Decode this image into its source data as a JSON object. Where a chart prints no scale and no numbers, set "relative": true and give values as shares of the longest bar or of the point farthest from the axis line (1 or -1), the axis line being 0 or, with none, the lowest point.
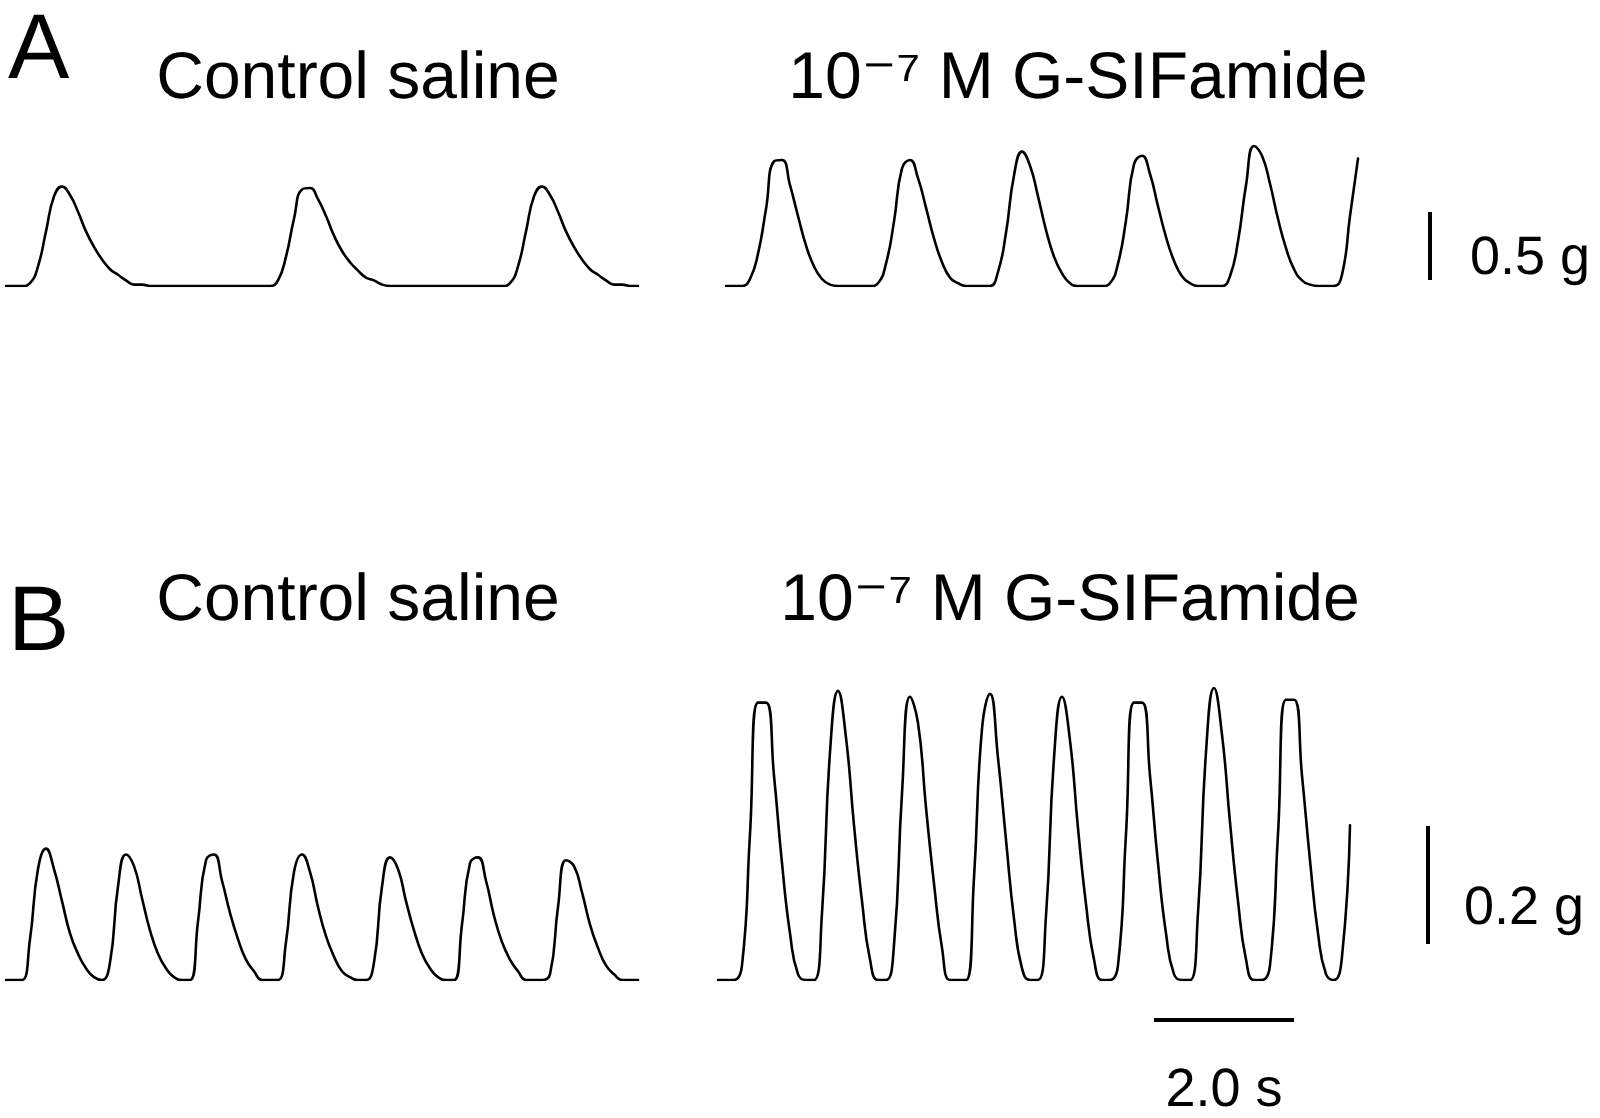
{
  "chart_data": [
    {
      "type": "line",
      "title": "A",
      "relative": true,
      "categories": [
        null,
        null,
        null,
        null,
        null,
        null,
        null,
        null,
        null,
        null,
        null,
        null,
        null,
        null,
        null,
        null,
        null,
        null,
        null,
        null,
        null,
        null,
        null,
        null,
        null,
        null,
        null,
        null,
        null,
        null,
        null,
        null,
        null,
        null,
        null,
        null,
        null,
        null,
        null,
        null,
        null,
        null,
        null,
        null,
        null,
        null,
        null,
        null,
        null,
        null,
        null,
        null,
        null,
        null,
        null,
        null,
        null,
        null,
        null,
        null,
        null,
        null,
        null,
        null,
        null,
        null,
        null,
        null,
        null,
        null,
        null,
        null,
        null,
        null,
        null,
        null,
        null,
        null,
        null,
        null,
        null,
        null,
        null,
        null,
        null,
        null,
        null,
        null,
        null,
        null,
        null,
        null,
        null,
        null,
        null,
        null,
        null,
        null,
        null,
        null,
        null,
        null,
        null,
        null,
        null,
        null,
        null,
        null,
        null,
        null,
        null,
        null,
        null,
        null,
        null,
        null,
        null,
        null,
        null,
        null,
        null,
        null,
        null,
        null,
        null,
        null,
        null,
        null,
        null,
        null,
        null,
        null,
        null,
        null,
        null,
        null,
        null,
        null,
        null,
        null,
        null,
        null,
        null,
        null,
        null,
        null,
        null,
        null,
        null,
        null,
        null,
        null,
        null,
        null,
        null,
        null,
        null,
        null,
        null,
        null,
        null,
        null,
        null,
        null,
        null,
        null,
        null,
        null,
        null,
        null
      ],
      "series": [
        {
          "name": "Control saline",
          "color": "#000000",
          "values": [
            0,
            0,
            0,
            0.02,
            0.14,
            0.39,
            0.64,
            0.71,
            0.65,
            0.53,
            0.39,
            0.28,
            0.19,
            0.12,
            0.08,
            0.04,
            0.01,
            0.01,
            0,
            0,
            0,
            0,
            0,
            0,
            0,
            0,
            0,
            0,
            0,
            0,
            0,
            0,
            0,
            0,
            0.04,
            0.21,
            0.48,
            0.69,
            0.7,
            0.62,
            0.5,
            0.36,
            0.25,
            0.17,
            0.11,
            0.06,
            0.04,
            0.01,
            0,
            0,
            0,
            0,
            0,
            0,
            0,
            0,
            0,
            0,
            0,
            0,
            0,
            0,
            0,
            0.02,
            0.14,
            0.39,
            0.64,
            0.71,
            0.65,
            0.53,
            0.39,
            0.28,
            0.19,
            0.12,
            0.08,
            0.04,
            0.01,
            0.01,
            0,
            0,
            null,
            null,
            null,
            null,
            null,
            null,
            null,
            null,
            null,
            null,
            null,
            null,
            null,
            null,
            null,
            null,
            null,
            null,
            null,
            null,
            null,
            null,
            null,
            null,
            null,
            null,
            null,
            null,
            null,
            null,
            null,
            null,
            null,
            null,
            null,
            null,
            null,
            null,
            null,
            null,
            null,
            null,
            null,
            null,
            null,
            null,
            null,
            null,
            null,
            null,
            null,
            null,
            null,
            null,
            null,
            null,
            null,
            null,
            null,
            null,
            null,
            null,
            null,
            null,
            null,
            null,
            null,
            null,
            null,
            null,
            null,
            null,
            null,
            null,
            null,
            null,
            null,
            null,
            null,
            null,
            null,
            null,
            null,
            null,
            null,
            null,
            null,
            null,
            null,
            null
          ]
        },
        {
          "name": "10⁻⁷ M G-SIFamide",
          "color": "#000000",
          "values": [
            null,
            null,
            null,
            null,
            null,
            null,
            null,
            null,
            null,
            null,
            null,
            null,
            null,
            null,
            null,
            null,
            null,
            null,
            null,
            null,
            null,
            null,
            null,
            null,
            null,
            null,
            null,
            null,
            null,
            null,
            null,
            null,
            null,
            null,
            null,
            null,
            null,
            null,
            null,
            null,
            null,
            null,
            null,
            null,
            null,
            null,
            null,
            null,
            null,
            null,
            null,
            null,
            null,
            null,
            null,
            null,
            null,
            null,
            null,
            null,
            null,
            null,
            null,
            null,
            null,
            null,
            null,
            null,
            null,
            null,
            null,
            null,
            null,
            null,
            null,
            null,
            null,
            null,
            null,
            null,
            null,
            null,
            null,
            null,
            null,
            null,
            null,
            null,
            null,
            null,
            0,
            0,
            0,
            0.05,
            0.23,
            0.55,
            0.89,
            0.9,
            0.72,
            0.5,
            0.29,
            0.14,
            0.05,
            0.01,
            0,
            0,
            0,
            0,
            0,
            0.02,
            0.16,
            0.46,
            0.84,
            0.9,
            0.77,
            0.56,
            0.34,
            0.17,
            0.06,
            0.02,
            0,
            0,
            0,
            0,
            0.1,
            0.38,
            0.79,
            0.96,
            0.86,
            0.64,
            0.4,
            0.21,
            0.09,
            0.02,
            0,
            0,
            0,
            0,
            0.02,
            0.16,
            0.47,
            0.87,
            0.93,
            0.8,
            0.57,
            0.35,
            0.18,
            0.07,
            0.02,
            0,
            0,
            0,
            0,
            0.07,
            0.32,
            0.72,
            1,
            0.93,
            0.73,
            0.48,
            0.27,
            0.12,
            0.04,
            0.01,
            0,
            0,
            0,
            0.08,
            0.5,
            0.91
          ]
        }
      ],
      "annotations": [
        "0.5 g"
      ]
    },
    {
      "type": "line",
      "title": "B",
      "relative": true,
      "categories": [
        null,
        null,
        null,
        null,
        null,
        null,
        null,
        null,
        null,
        null,
        null,
        null,
        null,
        null,
        null,
        null,
        null,
        null,
        null,
        null,
        null,
        null,
        null,
        null,
        null,
        null,
        null,
        null,
        null,
        null,
        null,
        null,
        null,
        null,
        null,
        null,
        null,
        null,
        null,
        null,
        null,
        null,
        null,
        null,
        null,
        null,
        null,
        null,
        null,
        null,
        null,
        null,
        null,
        null,
        null,
        null,
        null,
        null,
        null,
        null,
        null,
        null,
        null,
        null,
        null,
        null,
        null,
        null,
        null,
        null,
        null,
        null,
        null,
        null,
        null,
        null,
        null,
        null,
        null,
        null,
        null,
        null,
        null,
        null,
        null,
        null,
        null,
        null,
        null,
        null,
        null,
        null,
        null,
        null,
        null,
        null,
        null,
        null,
        null,
        null,
        null,
        null,
        null,
        null,
        null,
        null,
        null,
        null,
        null,
        null,
        null,
        null,
        null,
        null,
        null,
        null,
        null,
        null,
        null,
        null,
        null,
        null,
        null,
        null,
        null,
        null,
        null,
        null,
        null,
        null,
        null,
        null,
        null,
        null,
        null,
        null,
        null,
        null,
        null,
        null,
        null,
        null,
        null,
        null,
        null,
        null,
        null,
        null,
        null,
        null,
        null,
        null,
        null,
        null,
        null,
        null,
        null,
        null,
        null,
        null,
        null,
        null,
        null,
        null,
        null,
        null,
        null,
        null,
        null,
        null
      ],
      "series": [
        {
          "color": "#000000",
          "values": [
            0,
            0,
            0,
            0.14,
            0.38,
            0.45,
            0.38,
            0.27,
            0.16,
            0.09,
            0.04,
            0.01,
            0,
            0.06,
            0.32,
            0.43,
            0.39,
            0.28,
            0.17,
            0.09,
            0.04,
            0.01,
            0,
            0,
            0.2,
            0.41,
            0.43,
            0.34,
            0.23,
            0.14,
            0.07,
            0.03,
            0,
            0,
            0,
            0.13,
            0.37,
            0.43,
            0.37,
            0.25,
            0.15,
            0.08,
            0.03,
            0.01,
            0,
            0,
            0.06,
            0.32,
            0.42,
            0.38,
            0.27,
            0.17,
            0.09,
            0.04,
            0.01,
            0,
            0,
            0.19,
            0.4,
            0.42,
            0.34,
            0.22,
            0.13,
            0.07,
            0.03,
            0,
            0,
            0,
            0.02,
            0.25,
            0.41,
            0.39,
            0.3,
            0.19,
            0.11,
            0.05,
            0.02,
            0,
            0,
            0,
            null,
            null,
            null,
            null,
            null,
            null,
            null,
            null,
            null,
            null,
            null,
            null,
            null,
            null,
            null,
            null,
            null,
            null,
            null,
            null,
            null,
            null,
            null,
            null,
            null,
            null,
            null,
            null,
            null,
            null,
            null,
            null,
            null,
            null,
            null,
            null,
            null,
            null,
            null,
            null,
            null,
            null,
            null,
            null,
            null,
            null,
            null,
            null,
            null,
            null,
            null,
            null,
            null,
            null,
            null,
            null,
            null,
            null,
            null,
            null,
            null,
            null,
            null,
            null,
            null,
            null,
            null,
            null,
            null,
            null,
            null,
            null,
            null,
            null,
            null,
            null,
            null,
            null,
            null,
            null,
            null,
            null,
            null,
            null,
            null,
            null,
            null,
            null,
            null,
            null
          ]
        },
        {
          "name": "10⁻⁷ M G-SIFamide",
          "color": "#000000",
          "values": [
            null,
            null,
            null,
            null,
            null,
            null,
            null,
            null,
            null,
            null,
            null,
            null,
            null,
            null,
            null,
            null,
            null,
            null,
            null,
            null,
            null,
            null,
            null,
            null,
            null,
            null,
            null,
            null,
            null,
            null,
            null,
            null,
            null,
            null,
            null,
            null,
            null,
            null,
            null,
            null,
            null,
            null,
            null,
            null,
            null,
            null,
            null,
            null,
            null,
            null,
            null,
            null,
            null,
            null,
            null,
            null,
            null,
            null,
            null,
            null,
            null,
            null,
            null,
            null,
            null,
            null,
            null,
            null,
            null,
            null,
            null,
            null,
            null,
            null,
            null,
            null,
            null,
            null,
            null,
            null,
            null,
            null,
            null,
            null,
            null,
            null,
            null,
            null,
            null,
            0,
            0,
            0,
            0.05,
            0.5,
            0.95,
            0.95,
            0.7,
            0.4,
            0.16,
            0.02,
            0,
            0,
            0.23,
            0.78,
            0.99,
            0.83,
            0.53,
            0.27,
            0.07,
            0,
            0,
            0.12,
            0.64,
            0.97,
            0.88,
            0.59,
            0.33,
            0.11,
            0,
            0,
            0,
            0.35,
            0.86,
            0.98,
            0.76,
            0.48,
            0.21,
            0.04,
            0,
            0,
            0.22,
            0.76,
            0.97,
            0.82,
            0.52,
            0.26,
            0.07,
            0,
            0,
            0.05,
            0.5,
            0.95,
            0.95,
            0.7,
            0.4,
            0.16,
            0.02,
            0,
            0,
            0.23,
            0.78,
            1,
            0.84,
            0.54,
            0.27,
            0.07,
            0,
            0,
            0.05,
            0.5,
            0.96,
            0.96,
            0.7,
            0.41,
            0.16,
            0.02,
            0,
            0.08,
            0.53,
            null
          ]
        }
      ],
      "annotations": [
        "Control saline",
        "0.2 g",
        "2.0 s"
      ]
    }
  ]
}
